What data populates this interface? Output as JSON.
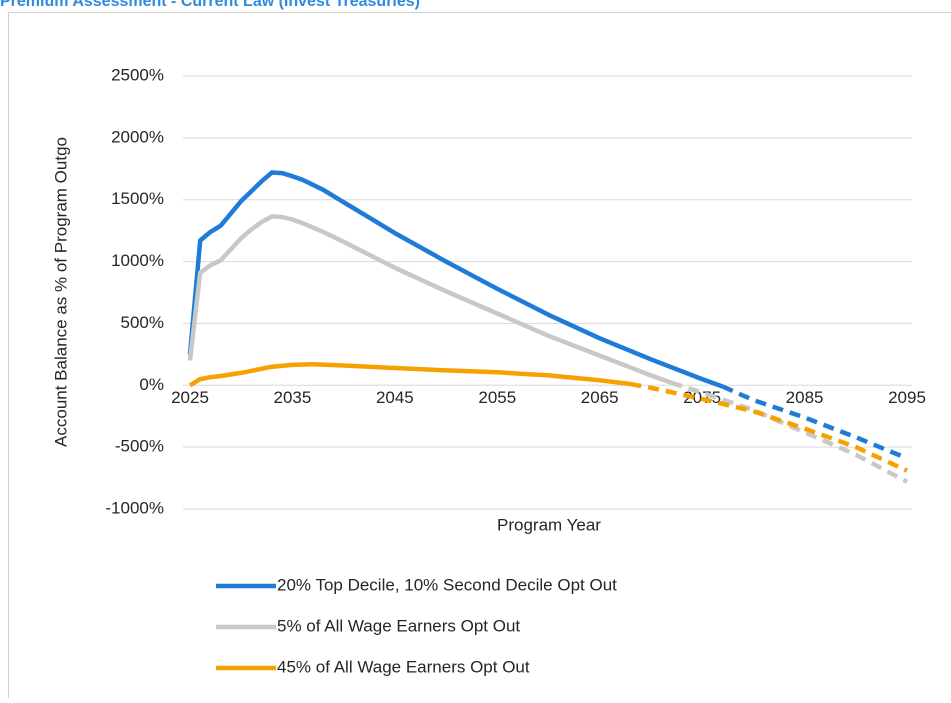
{
  "chart_data": {
    "type": "line",
    "title": "Premium Assessment - Current Law (Invest Treasuries)",
    "x_label": "Program Year",
    "y_label": "Account Balance as % of Program Outgo",
    "xlim": [
      2025,
      2095
    ],
    "xticks": [
      2025,
      2035,
      2045,
      2055,
      2065,
      2075,
      2085,
      2095
    ],
    "ylim": [
      -1000,
      2500
    ],
    "yticks": [
      {
        "value": -1000,
        "label": "-1000%"
      },
      {
        "value": -500,
        "label": "-500%"
      },
      {
        "value": 0,
        "label": "0%"
      },
      {
        "value": 500,
        "label": "500%"
      },
      {
        "value": 1000,
        "label": "1000%"
      },
      {
        "value": 1500,
        "label": "1500%"
      },
      {
        "value": 2000,
        "label": "2000%"
      },
      {
        "value": 2500,
        "label": "2500%"
      }
    ],
    "grid": true,
    "legend": "bottom",
    "series": [
      {
        "name": "20% Top Decile, 10% Second Decile Opt Out",
        "color": "#1f7bd8",
        "dashed_from": 2077,
        "x": [
          2025,
          2026,
          2027,
          2028,
          2029,
          2030,
          2031,
          2032,
          2033,
          2034,
          2035,
          2036,
          2038,
          2040,
          2043,
          2045,
          2050,
          2055,
          2060,
          2065,
          2070,
          2075,
          2077,
          2080,
          2085,
          2090,
          2095
        ],
        "values": [
          250,
          1170,
          1240,
          1290,
          1390,
          1490,
          1570,
          1650,
          1720,
          1715,
          1690,
          1660,
          1580,
          1480,
          1330,
          1230,
          1000,
          780,
          570,
          380,
          210,
          50,
          -10,
          -120,
          -260,
          -420,
          -590
        ]
      },
      {
        "name": "5% of All Wage Earners Opt Out",
        "color": "#c8c8c8",
        "dashed_from": 2072,
        "x": [
          2025,
          2026,
          2027,
          2028,
          2029,
          2030,
          2031,
          2032,
          2033,
          2034,
          2035,
          2036,
          2038,
          2040,
          2045,
          2050,
          2055,
          2060,
          2065,
          2070,
          2072,
          2075,
          2080,
          2085,
          2090,
          2095
        ],
        "values": [
          200,
          910,
          970,
          1010,
          1100,
          1190,
          1260,
          1320,
          1365,
          1360,
          1340,
          1310,
          1240,
          1160,
          950,
          760,
          580,
          400,
          240,
          80,
          20,
          -60,
          -200,
          -380,
          -560,
          -780
        ]
      },
      {
        "name": "45% of All Wage Earners Opt Out",
        "color": "#f5a200",
        "dashed_from": 2068,
        "x": [
          2025,
          2026,
          2027,
          2028,
          2030,
          2033,
          2035,
          2037,
          2040,
          2045,
          2050,
          2055,
          2060,
          2065,
          2068,
          2070,
          2075,
          2080,
          2085,
          2090,
          2095
        ],
        "values": [
          0,
          50,
          65,
          75,
          100,
          150,
          165,
          170,
          160,
          140,
          120,
          105,
          80,
          40,
          10,
          -20,
          -110,
          -210,
          -350,
          -500,
          -690
        ]
      }
    ]
  }
}
